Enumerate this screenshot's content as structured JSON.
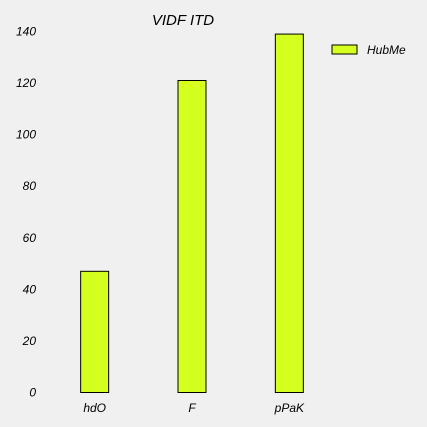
{
  "chart_data": {
    "type": "bar",
    "title": "VIDF ITD",
    "xlabel": "",
    "ylabel": "",
    "categories": [
      "hdO",
      "F",
      "pPaK"
    ],
    "series": [
      {
        "name": "HubMe",
        "values": [
          47,
          121,
          139
        ]
      }
    ],
    "ylim": [
      0,
      140
    ],
    "yticks": [
      0,
      20,
      40,
      60,
      80,
      100,
      120,
      140
    ],
    "ytick_labels": [
      "0",
      "20",
      "40",
      "60",
      "80",
      "100",
      "120",
      "140"
    ],
    "grid": false,
    "legend_position": "top-right",
    "bar_color": "#d4ff1f",
    "bar_edge_color": "#000000",
    "background_color": "#f0f0f0"
  }
}
